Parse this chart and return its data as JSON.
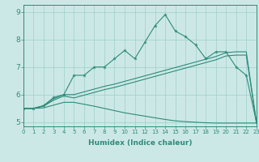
{
  "xlabel": "Humidex (Indice chaleur)",
  "x": [
    0,
    1,
    2,
    3,
    4,
    5,
    6,
    7,
    8,
    9,
    10,
    11,
    12,
    13,
    14,
    15,
    16,
    17,
    18,
    19,
    20,
    21,
    22,
    23
  ],
  "line1": [
    5.5,
    5.5,
    5.6,
    5.9,
    6.0,
    6.7,
    6.7,
    7.0,
    7.0,
    7.3,
    7.6,
    7.3,
    7.9,
    8.5,
    8.9,
    8.3,
    8.1,
    7.8,
    7.3,
    7.55,
    7.55,
    7.0,
    6.7,
    5.0
  ],
  "line2": [
    5.5,
    5.5,
    5.6,
    5.85,
    6.0,
    6.0,
    6.1,
    6.2,
    6.3,
    6.38,
    6.48,
    6.58,
    6.68,
    6.78,
    6.88,
    6.98,
    7.08,
    7.18,
    7.28,
    7.38,
    7.52,
    7.55,
    7.55,
    5.0
  ],
  "line3": [
    5.5,
    5.5,
    5.58,
    5.8,
    5.95,
    5.88,
    5.98,
    6.08,
    6.18,
    6.26,
    6.36,
    6.46,
    6.56,
    6.66,
    6.76,
    6.86,
    6.96,
    7.06,
    7.16,
    7.26,
    7.4,
    7.43,
    7.43,
    5.0
  ],
  "line4": [
    5.5,
    5.5,
    5.52,
    5.62,
    5.72,
    5.72,
    5.65,
    5.58,
    5.5,
    5.42,
    5.34,
    5.28,
    5.22,
    5.16,
    5.1,
    5.05,
    5.02,
    5.0,
    4.98,
    4.97,
    4.97,
    4.97,
    4.97,
    4.97
  ],
  "color": "#2e8b7a",
  "bg_color": "#cce8e6",
  "grid_color": "#9ecfcc",
  "xlim": [
    0,
    23
  ],
  "ylim": [
    4.85,
    9.25
  ],
  "yticks": [
    5,
    6,
    7,
    8,
    9
  ],
  "xtick_fontsize": 5.0,
  "ytick_fontsize": 6.5,
  "xlabel_fontsize": 6.5
}
